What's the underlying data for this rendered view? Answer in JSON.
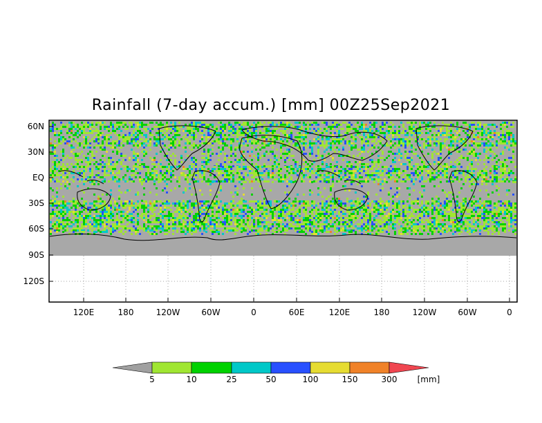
{
  "title": "Rainfall (7-day accum.) [mm] 00Z25Sep2021",
  "y_ticks": [
    "60N",
    "30N",
    "EQ",
    "30S",
    "60S",
    "90S",
    "120S"
  ],
  "x_ticks": [
    "120E",
    "180",
    "120W",
    "60W",
    "0",
    "60E",
    "120E",
    "180",
    "120W",
    "60W",
    "0"
  ],
  "colorbar": {
    "unit": "[mm]",
    "levels": [
      "5",
      "10",
      "25",
      "50",
      "100",
      "150",
      "300"
    ],
    "colors": [
      "#a0a0a0",
      "#a0e632",
      "#00d200",
      "#00c8c8",
      "#2850ff",
      "#e6dc32",
      "#f08228",
      "#f04650"
    ]
  },
  "colors": {
    "land_no_data": "#a8a8a8",
    "grid": "#a0a0a0"
  }
}
